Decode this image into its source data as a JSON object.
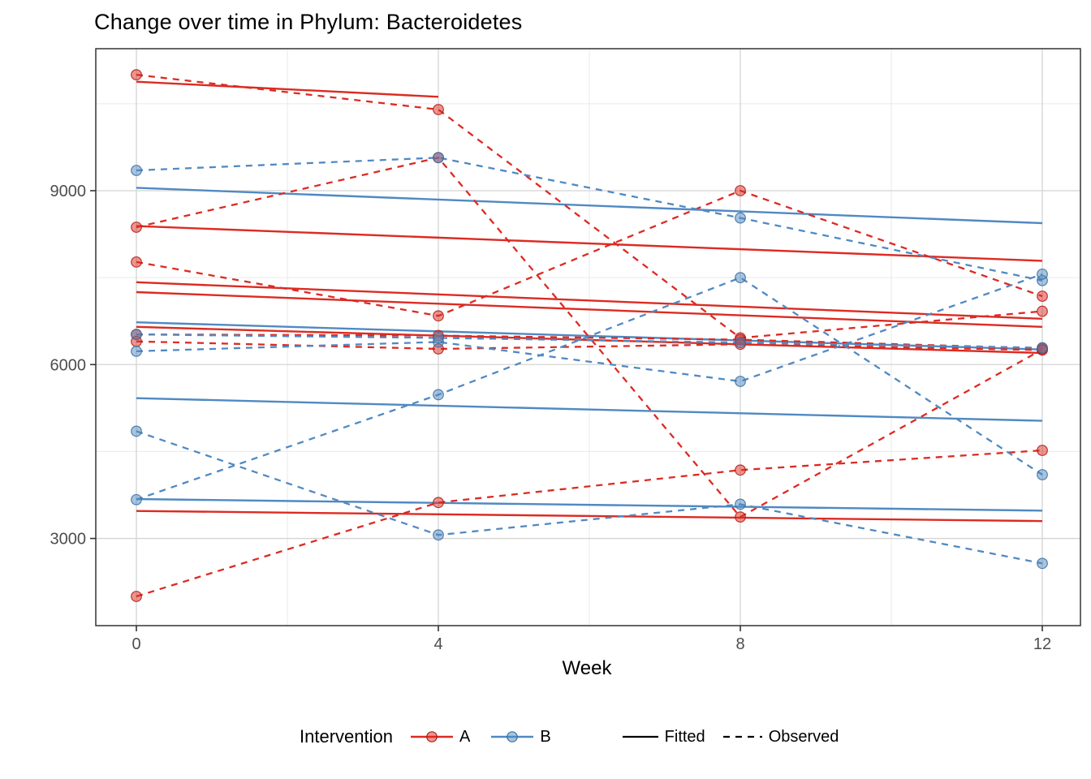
{
  "chart_data": {
    "type": "line",
    "title": "Change over time in Phylum: Bacteroidetes",
    "xlabel": "Week",
    "ylabel": "",
    "x_ticks": [
      0,
      4,
      8,
      12
    ],
    "y_ticks": [
      3000,
      6000,
      9000
    ],
    "y_minor_ticks": [
      4500,
      7500,
      10500
    ],
    "xlim": [
      -2.2,
      14.1
    ],
    "ylim": [
      1500,
      11450
    ],
    "grid": "on",
    "legend_position": "bottom",
    "legend": {
      "title": "Intervention",
      "groups": [
        {
          "label": "A",
          "color": "#DC2B22"
        },
        {
          "label": "B",
          "color": "#5089C2"
        }
      ],
      "linetypes": [
        {
          "label": "Fitted",
          "style": "solid"
        },
        {
          "label": "Observed",
          "style": "dashed"
        }
      ]
    },
    "colors": {
      "A_line": "#DC2B22",
      "A_point_stroke": "#B01B14",
      "B_line": "#5089C2",
      "B_point_stroke": "#3A6F9F",
      "grid_major": "#d4d4d4",
      "grid_minor": "#e9e9e9",
      "panel_border": "#333333",
      "tick_label": "#4d4d4d"
    },
    "weeks": [
      0,
      4,
      8,
      12
    ],
    "series": [
      {
        "id": "A1",
        "intervention": "A",
        "observed": {
          "weeks": [
            0,
            4,
            8,
            12
          ],
          "values": [
            11000,
            10400,
            6460,
            6920
          ]
        },
        "fitted": {
          "weeks": [
            0,
            4
          ],
          "values": [
            10880,
            10620
          ]
        }
      },
      {
        "id": "A2",
        "intervention": "A",
        "observed": {
          "weeks": [
            0,
            4,
            8,
            12
          ],
          "values": [
            8370,
            9570,
            3370,
            6260
          ]
        },
        "fitted": {
          "weeks": [
            0,
            12
          ],
          "values": [
            8390,
            7790
          ]
        }
      },
      {
        "id": "A3",
        "intervention": "A",
        "observed": {
          "weeks": [
            0,
            4,
            8,
            12
          ],
          "values": [
            7770,
            6840,
            9000,
            7180
          ]
        },
        "fitted": {
          "weeks": [
            0,
            12
          ],
          "values": [
            7420,
            6790
          ]
        }
      },
      {
        "id": "A4",
        "intervention": "A",
        "observed": {
          "weeks": [
            0,
            4,
            8,
            12
          ],
          "values": [
            6520,
            6500,
            6430,
            6280
          ]
        },
        "fitted": {
          "weeks": [
            0,
            12
          ],
          "values": [
            7250,
            6650
          ]
        }
      },
      {
        "id": "A5",
        "intervention": "A",
        "observed": {
          "weeks": [
            0,
            4,
            8,
            12
          ],
          "values": [
            6400,
            6270,
            6350,
            6250
          ]
        },
        "fitted": {
          "weeks": [
            0,
            12
          ],
          "values": [
            6650,
            6200
          ]
        }
      },
      {
        "id": "A6",
        "intervention": "A",
        "observed": {
          "weeks": [
            0,
            4,
            8,
            12
          ],
          "values": [
            2000,
            3620,
            4180,
            4520
          ]
        },
        "fitted": {
          "weeks": [
            0,
            12
          ],
          "values": [
            3475,
            3300
          ]
        }
      },
      {
        "id": "B1",
        "intervention": "B",
        "observed": {
          "weeks": [
            0,
            4,
            8,
            12
          ],
          "values": [
            9350,
            9570,
            8530,
            7450
          ]
        },
        "fitted": {
          "weeks": [
            0,
            12
          ],
          "values": [
            9050,
            8440
          ]
        }
      },
      {
        "id": "B2",
        "intervention": "B",
        "observed": {
          "weeks": [
            0,
            4,
            8,
            12
          ],
          "values": [
            3670,
            5480,
            7500,
            4100
          ]
        },
        "fitted": {
          "weeks": [
            0,
            12
          ],
          "values": [
            3680,
            3480
          ]
        }
      },
      {
        "id": "B3",
        "intervention": "B",
        "observed": {
          "weeks": [
            0,
            4,
            8,
            12
          ],
          "values": [
            6230,
            6390,
            5710,
            7560
          ]
        },
        "fitted": {
          "weeks": [
            0,
            12
          ],
          "values": [
            5420,
            5030
          ]
        }
      },
      {
        "id": "B4",
        "intervention": "B",
        "observed": {
          "weeks": [
            0,
            4,
            8,
            12
          ],
          "values": [
            6520,
            6460,
            6380,
            6290
          ]
        },
        "fitted": {
          "weeks": [
            0,
            12
          ],
          "values": [
            6730,
            6260
          ]
        }
      },
      {
        "id": "B5",
        "intervention": "B",
        "observed": {
          "weeks": [
            0,
            4,
            8,
            12
          ],
          "values": [
            4850,
            3060,
            3590,
            2570
          ]
        },
        "fitted": null
      }
    ]
  }
}
